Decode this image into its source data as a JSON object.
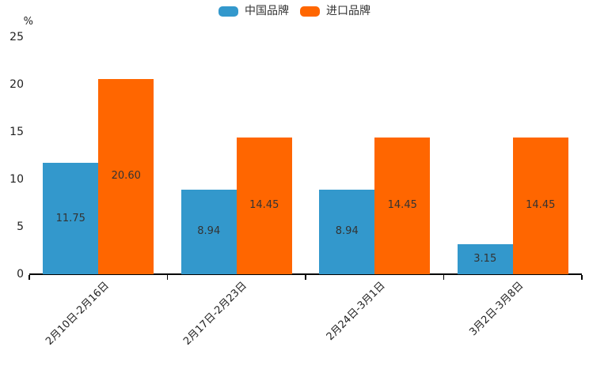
{
  "chart_data": {
    "type": "bar",
    "title": "",
    "categories": [
      "2月10日-2月16日",
      "2月17日-2月23日",
      "2月24日-3月1日",
      "3月2日-3月8日"
    ],
    "series": [
      {
        "name": "中国品牌",
        "color": "#3398CC",
        "values": [
          11.75,
          8.94,
          8.94,
          3.15
        ]
      },
      {
        "name": "进口品牌",
        "color": "#FF6600",
        "values": [
          20.6,
          14.45,
          14.45,
          14.45
        ]
      }
    ],
    "xlabel": "",
    "ylabel": "%",
    "ylim": [
      0,
      25
    ],
    "yticks": [
      0,
      5,
      10,
      15,
      20,
      25
    ],
    "grid": false,
    "legend_position": "top-center",
    "value_label_style": "inside-center, two decimals",
    "value_label_color": "#333333",
    "axis_color": "#000000"
  }
}
